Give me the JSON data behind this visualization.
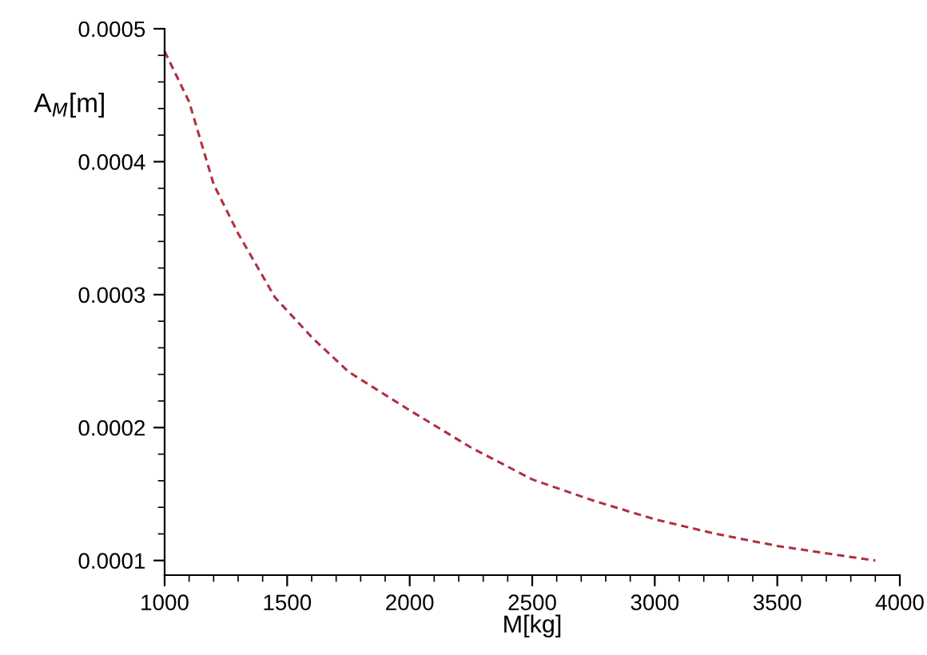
{
  "chart_data": {
    "type": "line",
    "xlabel": "M[kg]",
    "ylabel": "A$_{M}$[m]",
    "x": [
      1000,
      1100,
      1200,
      1300,
      1450,
      1600,
      1750,
      2000,
      2250,
      2500,
      2750,
      3000,
      3250,
      3500,
      3750,
      3900
    ],
    "series": [
      {
        "color": "#b03040",
        "values": [
          0.000483,
          0.000445,
          0.000383,
          0.000346,
          0.000298,
          0.000268,
          0.000242,
          0.000213,
          0.000185,
          0.000161,
          0.000145,
          0.000131,
          0.00012,
          0.000111,
          0.000104,
          0.0001
        ]
      }
    ],
    "xlim": [
      1000,
      4000
    ],
    "ylim": [
      8.9e-05,
      0.0005
    ],
    "xticks": [
      1000,
      1500,
      2000,
      2500,
      3000,
      3500,
      4000
    ],
    "yticks": [
      0.0001,
      0.0002,
      0.0003,
      0.0004,
      0.0005
    ],
    "line_style": "dashed",
    "marker": "none",
    "grid": false,
    "legend": false
  }
}
